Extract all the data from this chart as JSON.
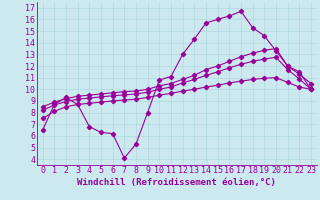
{
  "background_color": "#cde9f0",
  "line_color": "#990099",
  "grid_color": "#b0d8e0",
  "xlabel": "Windchill (Refroidissement éolien,°C)",
  "xlabel_fontsize": 6.5,
  "tick_fontsize": 6.0,
  "xlim": [
    -0.5,
    23.5
  ],
  "ylim": [
    3.5,
    17.5
  ],
  "xticks": [
    0,
    1,
    2,
    3,
    4,
    5,
    6,
    7,
    8,
    9,
    10,
    11,
    12,
    13,
    14,
    15,
    16,
    17,
    18,
    19,
    20,
    21,
    22,
    23
  ],
  "yticks": [
    4,
    5,
    6,
    7,
    8,
    9,
    10,
    11,
    12,
    13,
    14,
    15,
    16,
    17
  ],
  "line1_x": [
    0,
    1,
    2,
    3,
    4,
    5,
    6,
    7,
    8,
    9,
    10,
    11,
    12,
    13,
    14,
    15,
    16,
    17,
    18,
    19,
    20,
    21,
    22,
    23
  ],
  "line1_y": [
    6.5,
    8.7,
    9.3,
    8.7,
    6.8,
    6.3,
    6.2,
    4.1,
    5.3,
    8.0,
    10.8,
    11.1,
    13.0,
    14.3,
    15.7,
    16.0,
    16.3,
    16.7,
    15.3,
    14.6,
    13.3,
    12.0,
    11.3,
    10.5
  ],
  "line2_x": [
    0,
    1,
    2,
    3,
    4,
    5,
    6,
    7,
    8,
    9,
    10,
    11,
    12,
    13,
    14,
    15,
    16,
    17,
    18,
    19,
    20,
    21,
    22,
    23
  ],
  "line2_y": [
    8.5,
    8.9,
    9.2,
    9.4,
    9.5,
    9.6,
    9.7,
    9.8,
    9.85,
    10.0,
    10.3,
    10.5,
    10.85,
    11.2,
    11.7,
    12.0,
    12.4,
    12.8,
    13.1,
    13.35,
    13.5,
    12.0,
    11.5,
    10.0
  ],
  "line3_x": [
    0,
    1,
    2,
    3,
    4,
    5,
    6,
    7,
    8,
    9,
    10,
    11,
    12,
    13,
    14,
    15,
    16,
    17,
    18,
    19,
    20,
    21,
    22,
    23
  ],
  "line3_y": [
    8.2,
    8.65,
    8.95,
    9.15,
    9.25,
    9.35,
    9.45,
    9.52,
    9.6,
    9.75,
    10.0,
    10.2,
    10.55,
    10.85,
    11.2,
    11.5,
    11.85,
    12.15,
    12.4,
    12.6,
    12.75,
    11.7,
    10.9,
    10.0
  ],
  "line4_x": [
    0,
    1,
    2,
    3,
    4,
    5,
    6,
    7,
    8,
    9,
    10,
    11,
    12,
    13,
    14,
    15,
    16,
    17,
    18,
    19,
    20,
    21,
    22,
    23
  ],
  "line4_y": [
    7.5,
    8.1,
    8.5,
    8.7,
    8.8,
    8.9,
    9.0,
    9.08,
    9.15,
    9.3,
    9.5,
    9.65,
    9.85,
    10.0,
    10.2,
    10.35,
    10.55,
    10.7,
    10.85,
    10.95,
    11.0,
    10.6,
    10.2,
    10.0
  ]
}
